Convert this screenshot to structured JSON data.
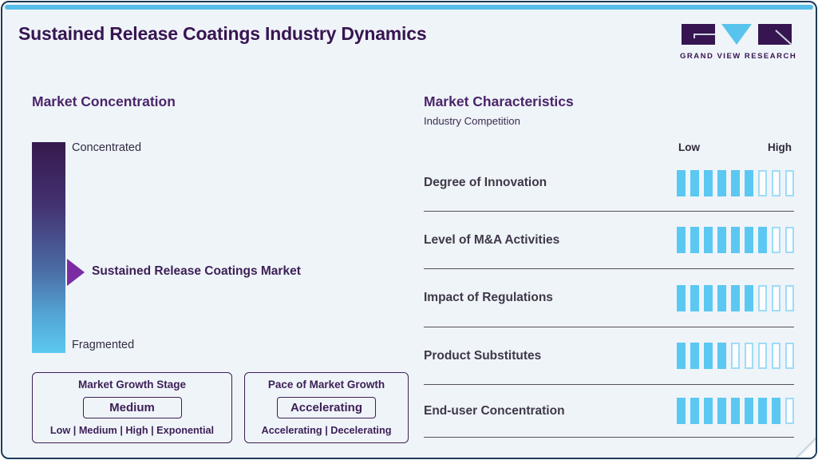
{
  "header": {
    "title": "Sustained Release Coatings Industry Dynamics",
    "logo_text": "GRAND VIEW RESEARCH"
  },
  "colors": {
    "accent": "#58bce8",
    "purple-title": "#371551",
    "purple-heading": "#4b2569",
    "purple-box": "#3c1f56",
    "arrow": "#7b2ca3",
    "seg-fill": "#5bc8f2",
    "seg-border": "#9edcf6",
    "divider": "#55505c",
    "bg": "#eff4f9",
    "frame-border": "#1e3b5a"
  },
  "concentration": {
    "heading": "Market Concentration",
    "scale_top": "Concentrated",
    "scale_bottom": "Fragmented",
    "marker_label": "Sustained Release Coatings Market"
  },
  "growth_stage_box": {
    "title": "Market Growth Stage",
    "value": "Medium",
    "options": "Low | Medium | High | Exponential"
  },
  "pace_box": {
    "title": "Pace of Market Growth",
    "value": "Accelerating",
    "options": "Accelerating | Decelerating"
  },
  "characteristics": {
    "heading": "Market Characteristics",
    "subtitle": "Industry Competition",
    "scale_low": "Low",
    "scale_high": "High"
  },
  "chart_data": {
    "type": "bar",
    "title": "Market Characteristics - Industry Competition",
    "legend_position": "none",
    "scale": {
      "min_label": "Low",
      "max_label": "High",
      "segments_total": 9,
      "range": [
        0,
        9
      ]
    },
    "categories": [
      "Degree of Innovation",
      "Level of M&A Activities",
      "Impact of Regulations",
      "Product Substitutes",
      "End-user Concentration"
    ],
    "values": [
      6,
      7,
      6,
      4,
      8
    ],
    "concentration_scale": {
      "top": "Concentrated",
      "bottom": "Fragmented",
      "marker_label": "Sustained Release Coatings Market",
      "marker_position": "middle"
    }
  }
}
